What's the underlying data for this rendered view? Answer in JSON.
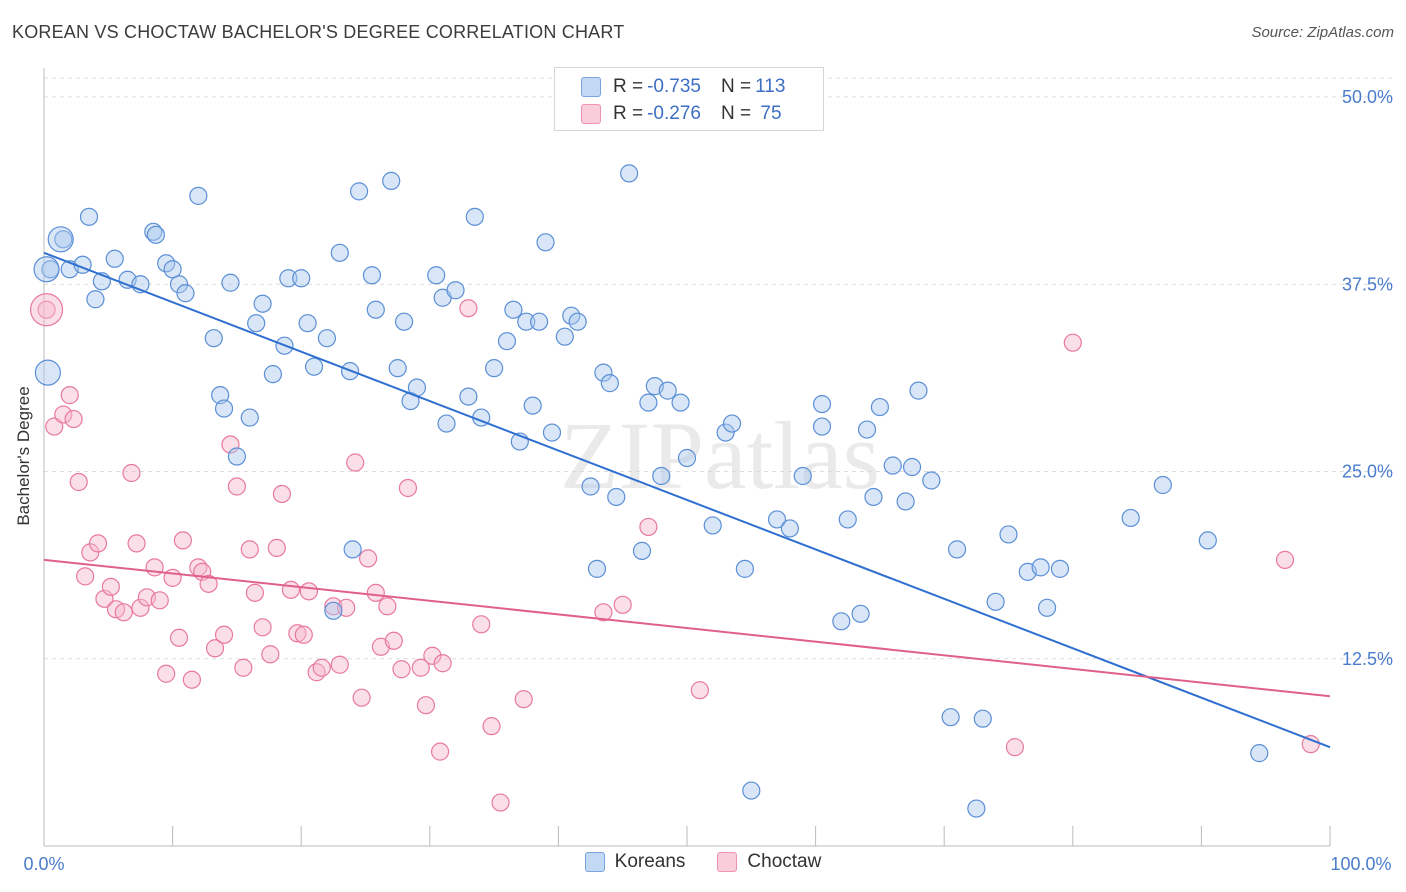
{
  "title": "KOREAN VS CHOCTAW BACHELOR'S DEGREE CORRELATION CHART",
  "source": "Source: ZipAtlas.com",
  "colors": {
    "korean_fill": "#a9c8ee",
    "korean_stroke": "#5b8fd6",
    "korean_line": "#2f6fd0",
    "choctaw_fill": "#f6b9cc",
    "choctaw_stroke": "#e8799d",
    "choctaw_line": "#e0608a",
    "tick_label": "#4a7ccc",
    "grid": "#dcdcdc"
  },
  "legend_top": {
    "rows": [
      {
        "r_label": "R = ",
        "r_value": "-0.735",
        "n_label": "N = ",
        "n_value": "113"
      },
      {
        "r_label": "R = ",
        "r_value": "-0.276",
        "n_label": "N = ",
        "n_value": " 75"
      }
    ]
  },
  "legend_bottom": [
    "Koreans",
    "Choctaw"
  ],
  "chart_data": {
    "type": "scatter",
    "title": "KOREAN VS CHOCTAW BACHELOR'S DEGREE CORRELATION CHART",
    "xlabel": "",
    "ylabel": "Bachelor's Degree",
    "xlim": [
      0,
      100
    ],
    "ylim": [
      0,
      50
    ],
    "x_tick_labels": [
      "0.0%",
      "100.0%"
    ],
    "y_ticks": [
      12.5,
      25.0,
      37.5,
      50.0
    ],
    "y_tick_labels": [
      "12.5%",
      "25.0%",
      "37.5%",
      "50.0%"
    ],
    "grid": true,
    "legend_placement": "top-center",
    "watermark": "ZIPatlas",
    "series": [
      {
        "name": "Koreans",
        "R": -0.735,
        "N": 113,
        "trendline": {
          "x": [
            0,
            100
          ],
          "y": [
            39.6,
            6.6
          ]
        },
        "points": [
          [
            0.5,
            38.5
          ],
          [
            1.5,
            40.5
          ],
          [
            2,
            38.5
          ],
          [
            4.5,
            37.7
          ],
          [
            3.5,
            42.0
          ],
          [
            3.0,
            38.8
          ],
          [
            5.5,
            39.2
          ],
          [
            6.5,
            37.8
          ],
          [
            4.0,
            36.5
          ],
          [
            7.5,
            37.5
          ],
          [
            8.5,
            41.0
          ],
          [
            9.5,
            38.9
          ],
          [
            8.7,
            40.8
          ],
          [
            10.5,
            37.5
          ],
          [
            11.0,
            36.9
          ],
          [
            10.0,
            38.5
          ],
          [
            13.2,
            33.9
          ],
          [
            13.7,
            30.1
          ],
          [
            12.0,
            43.4
          ],
          [
            14.0,
            29.2
          ],
          [
            14.5,
            37.6
          ],
          [
            15.0,
            26.0
          ],
          [
            16.0,
            28.6
          ],
          [
            16.5,
            34.9
          ],
          [
            17.0,
            36.2
          ],
          [
            17.8,
            31.5
          ],
          [
            18.7,
            33.4
          ],
          [
            19.0,
            37.9
          ],
          [
            20.0,
            37.9
          ],
          [
            20.5,
            34.9
          ],
          [
            21.0,
            32.0
          ],
          [
            22.0,
            33.9
          ],
          [
            23.0,
            39.6
          ],
          [
            23.8,
            31.7
          ],
          [
            22.5,
            15.7
          ],
          [
            24.0,
            19.8
          ],
          [
            24.5,
            43.7
          ],
          [
            25.5,
            38.1
          ],
          [
            25.8,
            35.8
          ],
          [
            27.0,
            44.4
          ],
          [
            28.0,
            35.0
          ],
          [
            27.5,
            31.9
          ],
          [
            28.5,
            29.7
          ],
          [
            29.0,
            30.6
          ],
          [
            30.5,
            38.1
          ],
          [
            31.0,
            36.6
          ],
          [
            31.3,
            28.2
          ],
          [
            32.0,
            37.1
          ],
          [
            33.0,
            30.0
          ],
          [
            33.5,
            42.0
          ],
          [
            34.0,
            28.6
          ],
          [
            35.0,
            31.9
          ],
          [
            36.5,
            35.8
          ],
          [
            36.0,
            33.7
          ],
          [
            37.5,
            35.0
          ],
          [
            37.0,
            27.0
          ],
          [
            38.0,
            29.4
          ],
          [
            38.5,
            35.0
          ],
          [
            39.0,
            40.3
          ],
          [
            39.5,
            27.6
          ],
          [
            40.5,
            34.0
          ],
          [
            41.0,
            35.4
          ],
          [
            41.5,
            35.0
          ],
          [
            42.5,
            24.0
          ],
          [
            43.0,
            18.5
          ],
          [
            43.5,
            31.6
          ],
          [
            44.0,
            30.9
          ],
          [
            44.5,
            23.3
          ],
          [
            45.5,
            44.9
          ],
          [
            46.5,
            19.7
          ],
          [
            47.0,
            29.6
          ],
          [
            47.5,
            30.7
          ],
          [
            48.0,
            24.7
          ],
          [
            48.5,
            30.4
          ],
          [
            49.5,
            29.6
          ],
          [
            50.0,
            25.9
          ],
          [
            52.0,
            21.4
          ],
          [
            53.0,
            27.6
          ],
          [
            53.5,
            28.2
          ],
          [
            54.5,
            18.5
          ],
          [
            55.0,
            3.7
          ],
          [
            57.0,
            21.8
          ],
          [
            58.0,
            21.2
          ],
          [
            59.0,
            24.7
          ],
          [
            60.5,
            29.5
          ],
          [
            60.5,
            28.0
          ],
          [
            62.0,
            15.0
          ],
          [
            62.5,
            21.8
          ],
          [
            63.5,
            15.5
          ],
          [
            64.0,
            27.8
          ],
          [
            64.5,
            23.3
          ],
          [
            65.0,
            29.3
          ],
          [
            66.0,
            25.4
          ],
          [
            67.0,
            23.0
          ],
          [
            67.5,
            25.3
          ],
          [
            68.0,
            30.4
          ],
          [
            69.0,
            24.4
          ],
          [
            70.5,
            8.6
          ],
          [
            71.0,
            19.8
          ],
          [
            72.5,
            2.5
          ],
          [
            73.0,
            8.5
          ],
          [
            74.0,
            16.3
          ],
          [
            75.0,
            20.8
          ],
          [
            76.5,
            18.3
          ],
          [
            77.5,
            18.6
          ],
          [
            78.0,
            15.9
          ],
          [
            79.0,
            18.5
          ],
          [
            84.5,
            21.9
          ],
          [
            87.0,
            24.1
          ],
          [
            90.5,
            20.4
          ],
          [
            94.5,
            6.2
          ]
        ],
        "large_points": [
          [
            0.2,
            38.5
          ],
          [
            1.3,
            40.5
          ],
          [
            0.3,
            31.6
          ]
        ]
      },
      {
        "name": "Choctaw",
        "R": -0.276,
        "N": 75,
        "trendline": {
          "x": [
            0,
            100
          ],
          "y": [
            19.1,
            10.0
          ]
        },
        "points": [
          [
            0.2,
            35.8
          ],
          [
            0.8,
            28.0
          ],
          [
            1.5,
            28.8
          ],
          [
            2.0,
            30.1
          ],
          [
            2.3,
            28.5
          ],
          [
            2.7,
            24.3
          ],
          [
            3.2,
            18.0
          ],
          [
            3.6,
            19.6
          ],
          [
            4.2,
            20.2
          ],
          [
            4.7,
            16.5
          ],
          [
            5.2,
            17.3
          ],
          [
            5.6,
            15.8
          ],
          [
            6.2,
            15.6
          ],
          [
            6.8,
            24.9
          ],
          [
            7.2,
            20.2
          ],
          [
            7.5,
            15.9
          ],
          [
            8.0,
            16.6
          ],
          [
            8.6,
            18.6
          ],
          [
            9.0,
            16.4
          ],
          [
            9.5,
            11.5
          ],
          [
            10.0,
            17.9
          ],
          [
            10.5,
            13.9
          ],
          [
            10.8,
            20.4
          ],
          [
            11.5,
            11.1
          ],
          [
            12.0,
            18.6
          ],
          [
            12.3,
            18.3
          ],
          [
            12.8,
            17.5
          ],
          [
            13.3,
            13.2
          ],
          [
            14.0,
            14.1
          ],
          [
            14.5,
            26.8
          ],
          [
            15.0,
            24.0
          ],
          [
            15.5,
            11.9
          ],
          [
            16.0,
            19.8
          ],
          [
            16.4,
            16.9
          ],
          [
            17.0,
            14.6
          ],
          [
            17.6,
            12.8
          ],
          [
            18.1,
            19.9
          ],
          [
            18.5,
            23.5
          ],
          [
            19.2,
            17.1
          ],
          [
            19.7,
            14.2
          ],
          [
            20.2,
            14.1
          ],
          [
            20.6,
            17.0
          ],
          [
            21.2,
            11.6
          ],
          [
            21.6,
            11.9
          ],
          [
            22.5,
            16.0
          ],
          [
            23.0,
            12.1
          ],
          [
            23.5,
            15.9
          ],
          [
            24.2,
            25.6
          ],
          [
            24.7,
            9.9
          ],
          [
            25.2,
            19.2
          ],
          [
            25.8,
            16.9
          ],
          [
            26.2,
            13.3
          ],
          [
            26.7,
            16.0
          ],
          [
            27.2,
            13.7
          ],
          [
            27.8,
            11.8
          ],
          [
            28.3,
            23.9
          ],
          [
            29.3,
            11.9
          ],
          [
            29.7,
            9.4
          ],
          [
            30.2,
            12.7
          ],
          [
            30.8,
            6.3
          ],
          [
            31.0,
            12.2
          ],
          [
            33.0,
            35.9
          ],
          [
            34.0,
            14.8
          ],
          [
            34.8,
            8.0
          ],
          [
            35.5,
            2.9
          ],
          [
            37.3,
            9.8
          ],
          [
            43.5,
            15.6
          ],
          [
            45.0,
            16.1
          ],
          [
            47.0,
            21.3
          ],
          [
            51.0,
            10.4
          ],
          [
            75.5,
            6.6
          ],
          [
            80.0,
            33.6
          ],
          [
            96.5,
            19.1
          ],
          [
            98.5,
            6.8
          ]
        ]
      }
    ]
  }
}
